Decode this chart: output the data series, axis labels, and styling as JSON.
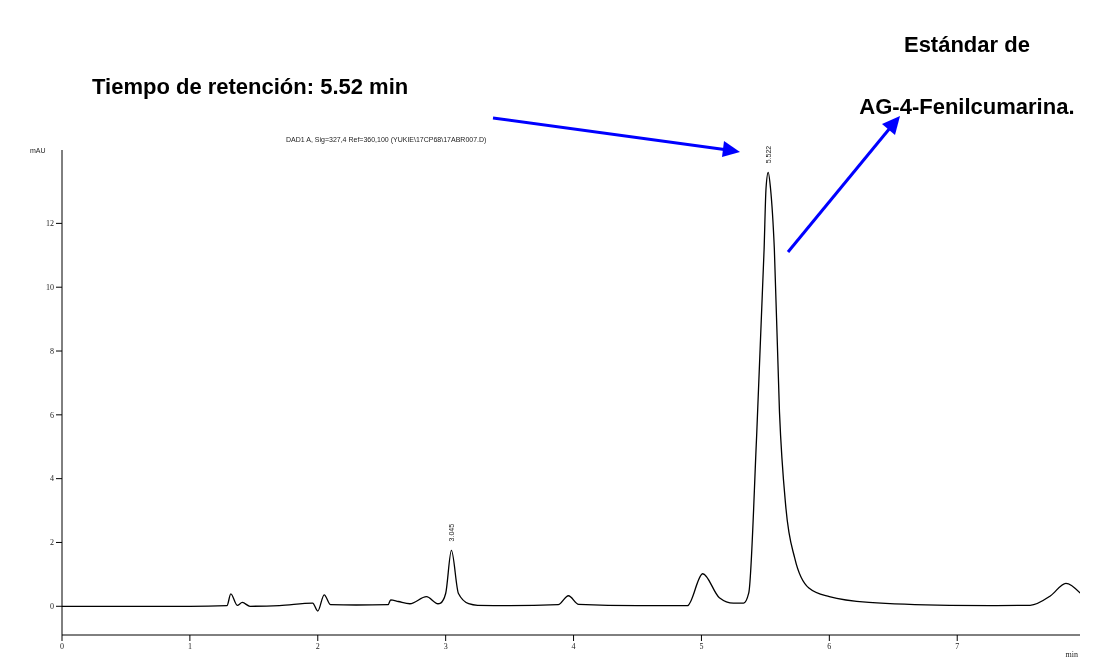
{
  "chart_data": {
    "type": "line",
    "subtitle": "DAD1 A, Sig=327,4 Ref=360,100 (YUKIE\\17CP68\\17ABR007.D)",
    "xlabel": "min",
    "ylabel": "mAU",
    "x": [
      0,
      0.5,
      1.0,
      1.29,
      1.32,
      1.37,
      1.41,
      1.47,
      1.7,
      1.96,
      2.0,
      2.05,
      2.1,
      2.3,
      2.55,
      2.57,
      2.63,
      2.72,
      2.85,
      2.94,
      2.96,
      3.0,
      3.045,
      3.1,
      3.18,
      3.25,
      3.5,
      3.88,
      3.96,
      4.04,
      4.5,
      4.89,
      5.01,
      5.14,
      5.25,
      5.33,
      5.37,
      5.43,
      5.49,
      5.505,
      5.522,
      5.54,
      5.57,
      5.61,
      5.66,
      5.73,
      5.84,
      6.0,
      6.31,
      6.94,
      7.3,
      7.57,
      7.73,
      7.85,
      7.96
    ],
    "values": [
      0,
      0,
      0,
      0.02,
      0.39,
      0.03,
      0.12,
      0,
      0.02,
      0.1,
      -0.15,
      0.36,
      0.05,
      0.04,
      0.05,
      0.2,
      0.15,
      0.08,
      0.3,
      0.08,
      0.1,
      0.4,
      1.75,
      0.4,
      0.08,
      0.03,
      0.02,
      0.05,
      0.33,
      0.06,
      0.02,
      0.02,
      1.02,
      0.27,
      0.1,
      0.1,
      0.42,
      5.2,
      11.2,
      13.1,
      13.6,
      13.1,
      11.2,
      6.1,
      3.1,
      1.5,
      0.57,
      0.3,
      0.12,
      0.03,
      0.02,
      0.03,
      0.33,
      0.72,
      0.42
    ],
    "color": "#000000",
    "xlim": [
      0,
      7.96
    ],
    "ylim": [
      -0.9,
      14.3
    ],
    "xticks": [
      0,
      1,
      2,
      3,
      4,
      5,
      6,
      7
    ],
    "yticks": [
      0,
      2,
      4,
      6,
      8,
      10,
      12
    ],
    "grid": false,
    "marker": "none",
    "annotations": [
      "Tiempo de retención: 5.52 min",
      "Estándar de AG-4-Fenilcumarina.",
      {
        "text": "3.045",
        "x": 3.045,
        "y": 1.75
      },
      {
        "text": "5.522",
        "x": 5.522,
        "y": 13.6
      }
    ]
  }
}
